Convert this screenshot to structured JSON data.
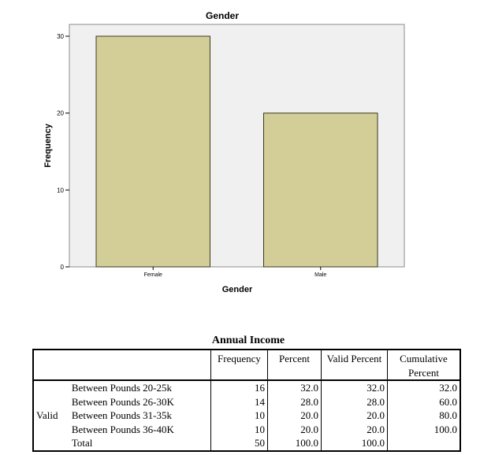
{
  "chart_data": {
    "type": "bar",
    "title": "Gender",
    "xlabel": "Gender",
    "ylabel": "Frequency",
    "categories": [
      "Female",
      "Male"
    ],
    "values": [
      30,
      20
    ],
    "ylim": [
      0,
      30
    ],
    "yticks": [
      0,
      10,
      20,
      30
    ],
    "grid": false,
    "colors": {
      "bar_fill": "#D3CE98",
      "bar_stroke": "#3a3a1e",
      "plot_background": "#F0F0F0"
    }
  },
  "table": {
    "title": "Annual Income",
    "headers": [
      "Frequency",
      "Percent",
      "Valid Percent",
      "Cumulative Percent"
    ],
    "row_group": "Valid",
    "rows": [
      {
        "label": "Between Pounds 20-25k",
        "frequency": "16",
        "percent": "32.0",
        "valid_percent": "32.0",
        "cumulative_percent": "32.0"
      },
      {
        "label": "Between Pounds 26-30K",
        "frequency": "14",
        "percent": "28.0",
        "valid_percent": "28.0",
        "cumulative_percent": "60.0"
      },
      {
        "label": "Between Pounds 31-35k",
        "frequency": "10",
        "percent": "20.0",
        "valid_percent": "20.0",
        "cumulative_percent": "80.0"
      },
      {
        "label": "Between Pounds 36-40K",
        "frequency": "10",
        "percent": "20.0",
        "valid_percent": "20.0",
        "cumulative_percent": "100.0"
      },
      {
        "label": "Total",
        "frequency": "50",
        "percent": "100.0",
        "valid_percent": "100.0",
        "cumulative_percent": ""
      }
    ]
  }
}
